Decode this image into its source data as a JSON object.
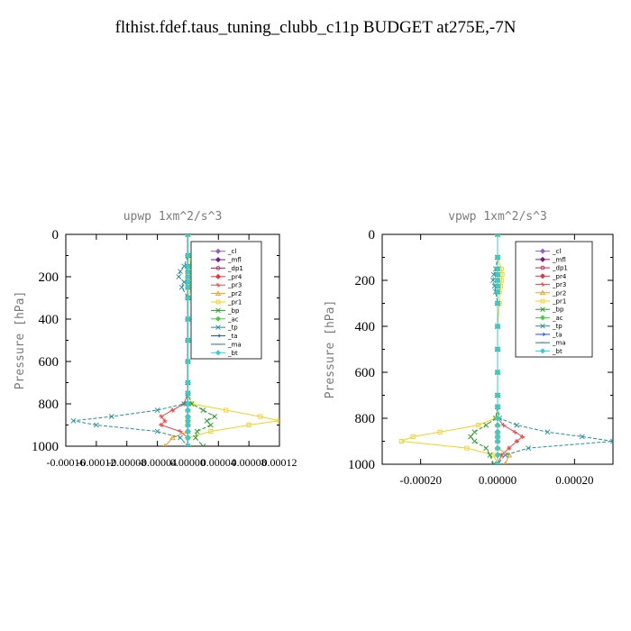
{
  "page": {
    "title": "flthist.fdef.taus_tuning_clubb_c11p  BUDGET at275E,-7N"
  },
  "legend_entries": [
    {
      "label": "_cl",
      "color": "#9b59d0",
      "marker": "diamond"
    },
    {
      "label": "_mfl",
      "color": "#7a1a8a",
      "marker": "diamond"
    },
    {
      "label": "_dp1",
      "color": "#c8204e",
      "marker": "circle"
    },
    {
      "label": "_pr4",
      "color": "#e8353a",
      "marker": "diamond"
    },
    {
      "label": "_pr3",
      "color": "#f04848",
      "marker": "star"
    },
    {
      "label": "_pr2",
      "color": "#f0a020",
      "marker": "triangle"
    },
    {
      "label": "_pr1",
      "color": "#f4d020",
      "marker": "square"
    },
    {
      "label": "_bp",
      "color": "#20a020",
      "marker": "cross"
    },
    {
      "label": "_ac",
      "color": "#40d040",
      "marker": "diamond"
    },
    {
      "label": "_tp",
      "color": "#2090a0",
      "marker": "cross"
    },
    {
      "label": "_ta",
      "color": "#2050d0",
      "marker": "arrow"
    },
    {
      "label": "_ma",
      "color": "#208080",
      "marker": "dash"
    },
    {
      "label": "_bt",
      "color": "#30d0d0",
      "marker": "diamond"
    }
  ],
  "chart_data": [
    {
      "type": "line",
      "title": "upwp   1xm^2/s^3",
      "ylabel": "Pressure [hPa]",
      "ylim": [
        1000,
        0
      ],
      "xlim": [
        -0.00016,
        0.00012
      ],
      "yticks": [
        0,
        200,
        400,
        600,
        800,
        1000
      ],
      "yticklabels": [
        "0",
        "200",
        "400",
        "600",
        "800",
        "1000"
      ],
      "xticks": [
        -0.00016,
        -0.00012,
        -8e-05,
        -4e-05,
        0.0,
        4e-05,
        8e-05,
        0.00012
      ],
      "xticklabels": [
        "-0.00016",
        "-0.00012",
        "-0.00008",
        "-0.00004",
        "0.00000",
        "0.00004",
        "0.00008",
        "0.00012"
      ],
      "y": [
        0,
        100,
        150,
        175,
        200,
        225,
        250,
        300,
        400,
        500,
        600,
        700,
        750,
        800,
        830,
        860,
        880,
        900,
        930,
        960,
        1000
      ],
      "series": [
        {
          "name": "_cl",
          "values": [
            0,
            0,
            0,
            0,
            0,
            0,
            0,
            0,
            0,
            0,
            0,
            0,
            0,
            0,
            0,
            0,
            0,
            0,
            0,
            0,
            0
          ]
        },
        {
          "name": "_mfl",
          "values": [
            0,
            0,
            0,
            0,
            0,
            0,
            0,
            0,
            0,
            0,
            0,
            0,
            0,
            0,
            0,
            0,
            0,
            0,
            0,
            0,
            0
          ]
        },
        {
          "name": "_dp1",
          "values": [
            0,
            0,
            0,
            0,
            0,
            0,
            0,
            0,
            0,
            0,
            0,
            0,
            0,
            0,
            0,
            0,
            0,
            0,
            0,
            0,
            0
          ]
        },
        {
          "name": "_pr4",
          "values": [
            0,
            0,
            0,
            0,
            0,
            0,
            0,
            0,
            0,
            0,
            0,
            0,
            0,
            0,
            0,
            0,
            0,
            0,
            0,
            0,
            0
          ]
        },
        {
          "name": "_pr3",
          "values": [
            0,
            0,
            0,
            0,
            0,
            0,
            0,
            0,
            0,
            0,
            0,
            0,
            0,
            -5e-06,
            -2e-05,
            -3.5e-05,
            -3e-05,
            -3.5e-05,
            -1e-05,
            0,
            0
          ]
        },
        {
          "name": "_pr2",
          "values": [
            0,
            0,
            0,
            0,
            0,
            0,
            0,
            0,
            0,
            0,
            0,
            0,
            0,
            0,
            0,
            0,
            0,
            0,
            0,
            -2e-05,
            -3e-05
          ]
        },
        {
          "name": "_pr1",
          "values": [
            0,
            0,
            5e-06,
            1e-05,
            5e-06,
            8e-06,
            5e-06,
            0,
            0,
            0,
            0,
            0,
            0,
            5e-06,
            5e-05,
            9.5e-05,
            0.00012,
            8e-05,
            3e-05,
            0,
            0
          ]
        },
        {
          "name": "_bp",
          "values": [
            0,
            0,
            0,
            0,
            0,
            0,
            0,
            0,
            0,
            0,
            0,
            0,
            0,
            5e-06,
            2e-05,
            3.5e-05,
            2.5e-05,
            3e-05,
            1.2e-05,
            1e-05,
            2e-05
          ]
        },
        {
          "name": "_ac",
          "values": [
            0,
            0,
            0,
            0,
            0,
            0,
            0,
            0,
            0,
            0,
            0,
            0,
            0,
            0,
            0,
            0,
            0,
            0,
            0,
            0,
            0
          ]
        },
        {
          "name": "_tp",
          "values": [
            0,
            0,
            -5e-06,
            -1e-05,
            -1.2e-05,
            -5e-06,
            -8e-06,
            0,
            0,
            0,
            0,
            0,
            0,
            -5e-06,
            -4e-05,
            -0.0001,
            -0.00015,
            -0.00012,
            -4e-05,
            -1e-05,
            0
          ]
        },
        {
          "name": "_ta",
          "values": [
            0,
            0,
            0,
            0,
            0,
            0,
            0,
            0,
            0,
            0,
            0,
            0,
            0,
            0,
            0,
            0,
            0,
            0,
            0,
            0,
            0
          ]
        },
        {
          "name": "_ma",
          "values": [
            0,
            0,
            0,
            0,
            0,
            0,
            0,
            0,
            0,
            0,
            0,
            0,
            0,
            0,
            0,
            0,
            0,
            0,
            0,
            0,
            0
          ]
        },
        {
          "name": "_bt",
          "values": [
            0,
            0,
            0,
            0,
            0,
            0,
            0,
            0,
            0,
            0,
            0,
            0,
            0,
            0,
            0,
            0,
            0,
            0,
            0,
            0,
            0
          ]
        }
      ]
    },
    {
      "type": "line",
      "title": "vpwp   1xm^2/s^3",
      "ylabel": "Pressure [hPa]",
      "ylim": [
        1000,
        0
      ],
      "xlim": [
        -0.0003,
        0.0003
      ],
      "yticks": [
        0,
        200,
        400,
        600,
        800,
        1000
      ],
      "yticklabels": [
        "0",
        "200",
        "400",
        "600",
        "800",
        "1000"
      ],
      "xticks": [
        -0.0002,
        0.0,
        0.0002
      ],
      "xticklabels": [
        "-0.00020",
        "0.00000",
        "0.00020"
      ],
      "y": [
        0,
        100,
        150,
        175,
        200,
        225,
        250,
        300,
        400,
        500,
        600,
        700,
        750,
        800,
        830,
        860,
        880,
        900,
        930,
        960,
        1000
      ],
      "series": [
        {
          "name": "_cl",
          "values": [
            0,
            0,
            0,
            0,
            0,
            0,
            0,
            0,
            0,
            0,
            0,
            0,
            0,
            0,
            0,
            0,
            0,
            0,
            0,
            0,
            0
          ]
        },
        {
          "name": "_mfl",
          "values": [
            0,
            0,
            0,
            0,
            0,
            0,
            0,
            0,
            0,
            0,
            0,
            0,
            0,
            0,
            0,
            0,
            0,
            0,
            0,
            0,
            0
          ]
        },
        {
          "name": "_dp1",
          "values": [
            0,
            0,
            0,
            0,
            0,
            0,
            0,
            0,
            0,
            0,
            0,
            0,
            0,
            0,
            0,
            0,
            0,
            0,
            0,
            0,
            0
          ]
        },
        {
          "name": "_pr4",
          "values": [
            0,
            0,
            0,
            0,
            0,
            0,
            0,
            0,
            0,
            0,
            0,
            0,
            0,
            0,
            0,
            0,
            0,
            0,
            0,
            0,
            0
          ]
        },
        {
          "name": "_pr3",
          "values": [
            0,
            0,
            0,
            0,
            0,
            0,
            0,
            0,
            0,
            0,
            0,
            0,
            0,
            0,
            1.5e-05,
            4.5e-05,
            6.5e-05,
            5e-05,
            3e-05,
            1e-05,
            0
          ]
        },
        {
          "name": "_pr2",
          "values": [
            0,
            0,
            0,
            0,
            0,
            0,
            0,
            0,
            0,
            0,
            0,
            0,
            0,
            0,
            0,
            0,
            0,
            0,
            0,
            3e-05,
            2e-05
          ]
        },
        {
          "name": "_pr1",
          "values": [
            0,
            0,
            1e-05,
            1.2e-05,
            1e-05,
            8e-06,
            5e-06,
            5e-06,
            0,
            0,
            0,
            0,
            0,
            -5e-06,
            -5e-05,
            -0.00015,
            -0.00022,
            -0.00025,
            -8e-05,
            -1e-05,
            0
          ]
        },
        {
          "name": "_bp",
          "values": [
            0,
            0,
            0,
            0,
            0,
            0,
            0,
            0,
            0,
            0,
            0,
            0,
            0,
            -5e-06,
            -3e-05,
            -6e-05,
            -7e-05,
            -6e-05,
            -3e-05,
            -2e-05,
            -1e-05
          ]
        },
        {
          "name": "_ac",
          "values": [
            0,
            0,
            0,
            0,
            0,
            0,
            0,
            0,
            0,
            0,
            0,
            0,
            0,
            0,
            0,
            0,
            0,
            0,
            0,
            0,
            0
          ]
        },
        {
          "name": "_tp",
          "values": [
            0,
            0,
            -5e-06,
            -1e-05,
            -1.2e-05,
            -8e-06,
            -5e-06,
            0,
            0,
            0,
            0,
            0,
            0,
            5e-06,
            5e-05,
            0.00013,
            0.00022,
            0.0003,
            8e-05,
            2e-05,
            0
          ]
        },
        {
          "name": "_ta",
          "values": [
            0,
            0,
            0,
            0,
            0,
            0,
            0,
            0,
            0,
            0,
            0,
            0,
            0,
            0,
            0,
            0,
            0,
            0,
            0,
            0,
            0
          ]
        },
        {
          "name": "_ma",
          "values": [
            0,
            0,
            0,
            0,
            0,
            0,
            0,
            0,
            0,
            0,
            0,
            0,
            0,
            0,
            0,
            0,
            0,
            0,
            0,
            0,
            0
          ]
        },
        {
          "name": "_bt",
          "values": [
            0,
            0,
            0,
            0,
            0,
            0,
            0,
            0,
            0,
            0,
            0,
            0,
            0,
            0,
            0,
            0,
            0,
            0,
            0,
            0,
            0
          ]
        }
      ]
    }
  ]
}
